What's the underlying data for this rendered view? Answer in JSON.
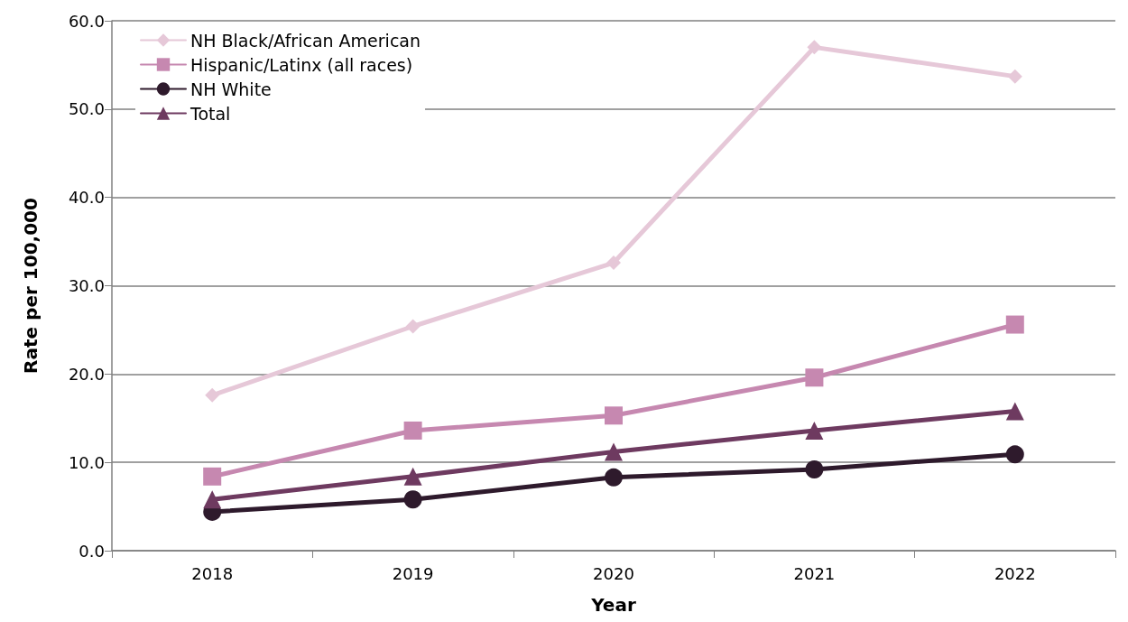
{
  "chart_data": {
    "type": "line",
    "xlabel": "Year",
    "ylabel": "Rate per 100,000",
    "categories": [
      "2018",
      "2019",
      "2020",
      "2021",
      "2022"
    ],
    "series": [
      {
        "name": "NH Black/African American",
        "color": "#e6c8d8",
        "marker": "diamond",
        "values": [
          17.6,
          25.4,
          32.6,
          57.0,
          53.7
        ]
      },
      {
        "name": "Hispanic/Latinx (all races)",
        "color": "#c688b0",
        "marker": "square",
        "values": [
          8.4,
          13.6,
          15.3,
          19.6,
          25.6
        ]
      },
      {
        "name": "NH White",
        "color": "#2e1a2c",
        "marker": "circle",
        "values": [
          4.4,
          5.8,
          8.3,
          9.2,
          10.9
        ]
      },
      {
        "name": "Total",
        "color": "#6e3a60",
        "marker": "triangle",
        "values": [
          5.8,
          8.4,
          11.2,
          13.6,
          15.8
        ]
      }
    ],
    "ylim": [
      0,
      60
    ],
    "yticks": [
      {
        "value": 0,
        "label": "0.0"
      },
      {
        "value": 10,
        "label": "10.0"
      },
      {
        "value": 20,
        "label": "20.0"
      },
      {
        "value": 30,
        "label": "30.0"
      },
      {
        "value": 40,
        "label": "40.0"
      },
      {
        "value": 50,
        "label": "50.0"
      },
      {
        "value": 60,
        "label": "60.0"
      }
    ],
    "grid": "y",
    "legend": "top left",
    "line_style": "solid"
  }
}
